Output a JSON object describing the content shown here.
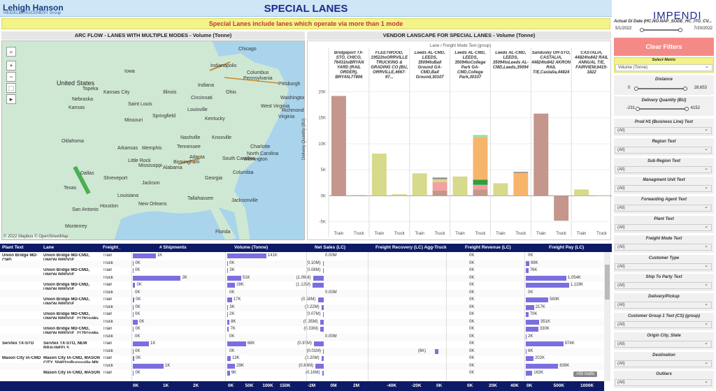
{
  "header": {
    "logo_line1": "Lehigh Hanson",
    "logo_line2": "HEIDELBERGCEMENT Group",
    "title": "SPECIAL LANES",
    "banner": "Special Lanes include lanes which operate via more than 1 mode"
  },
  "map": {
    "title": "ARC FLOW - LANES WITH MULTIPLE MODES - Volume (Tonne)",
    "attribution": "© 2022 Mapbox © OpenStreetMap",
    "labels": [
      "Chicago",
      "Indianapolis",
      "Columbus",
      "Pittsburgh",
      "Pennsylvania",
      "Ohio",
      "Indiana",
      "Illinois",
      "Iowa",
      "Nebraska",
      "Kansas",
      "Missouri",
      "Kentucky",
      "Virginia",
      "West Virginia",
      "Washington",
      "Richmond",
      "Nashville",
      "Charlotte",
      "Tennessee",
      "North Carolina",
      "Atlanta",
      "South Carolina",
      "Wilmington",
      "Georgia",
      "Alabama",
      "Birmingham",
      "Mississippi",
      "Memphis",
      "Arkansas",
      "Oklahoma",
      "Texas",
      "Dallas",
      "Shreveport",
      "Louisiana",
      "New Orleans",
      "Houston",
      "San Antonio",
      "Monterrey",
      "Jacksonville",
      "Tallahassee",
      "Florida",
      "Columbia",
      "Little Rock",
      "Saint Louis",
      "Kansas City",
      "Topeka",
      "Springfield",
      "Cincinnati",
      "Louisville",
      "Knoxville",
      "Jackson"
    ],
    "country": "United States",
    "country2": "States"
  },
  "vendor": {
    "title": "VENDOR LANSCAPE FOR SPECIAL LANES - Volume (Tonne)",
    "legend_label": "Lane",
    "legend2": "Freight Mode Text (group)",
    "columns": [
      "Bridgeport TX-STO, CHICO, 76431toBRYAN YARD (RAIL ORDER), BRYAN,77806",
      "FLEETWOOD, 19522toORRVILLE TRUCKING & GRADING CO (BU, ORRVILLE,4667-97...",
      "Leeds AL-CMD, LEEDS, 35094toBall Ground GA-CMD,Ball Ground,30107",
      "Leeds AL-CMD, LEEDS, 35094toCollege Park GA-CMD,College Park,30337",
      "Leeds AL-CMD, LEEDS, 35094toLeeds AL-CMD,Leeds,35094",
      "Sandusky OH-STO, CASTALIA, 44824to842 AKRON RAIL T/E,Castalia,44824",
      "CASTALIA, 44824to842 RAIL ANNUAL T/E, FAIRVIEW,6415-1822"
    ],
    "ylabel": "Delivery Quantity (BU)",
    "yticks": [
      "20K",
      "15K",
      "10K",
      "5K",
      "0K",
      "-5K"
    ],
    "xlabels": [
      "Train",
      "Truck"
    ]
  },
  "chart_data": {
    "type": "bar",
    "title": "VENDOR LANSCAPE FOR SPECIAL LANES - Volume (Tonne)",
    "ylabel": "Delivery Quantity (BU)",
    "ylim": [
      -6000,
      21000
    ],
    "groups": [
      {
        "lane": "Bridgeport TX-STO",
        "train": [
          {
            "v": 19200,
            "c": "#c4968c"
          }
        ],
        "truck": [
          {
            "v": 100,
            "c": "#c4968c"
          }
        ]
      },
      {
        "lane": "FLEETWOOD",
        "train": [
          {
            "v": 8100,
            "c": "#d7d98b"
          }
        ],
        "truck": [
          {
            "v": 300,
            "c": "#d7d98b"
          }
        ]
      },
      {
        "lane": "Leeds-Ball Ground",
        "train": [
          {
            "v": 4300,
            "c": "#d7d98b"
          }
        ],
        "truck": [
          {
            "v": 1000,
            "c": "#c4968c"
          },
          {
            "v": 1600,
            "c": "#f4a0a0"
          },
          {
            "v": 600,
            "c": "#d7d98b"
          },
          {
            "v": 300,
            "c": "#8c8c8c"
          }
        ]
      },
      {
        "lane": "Leeds-College Park",
        "train": [
          {
            "v": 3700,
            "c": "#d7d98b"
          }
        ],
        "truck": [
          {
            "v": 1200,
            "c": "#c4968c"
          },
          {
            "v": 900,
            "c": "#f4a0a0"
          },
          {
            "v": 1000,
            "c": "#2e9e3e"
          },
          {
            "v": 8200,
            "c": "#f7b56b"
          },
          {
            "v": 400,
            "c": "#9be3a0"
          }
        ]
      },
      {
        "lane": "Leeds-Leeds",
        "train": [
          {
            "v": 2400,
            "c": "#d7d98b"
          }
        ],
        "truck": [
          {
            "v": 4400,
            "c": "#f7b56b"
          },
          {
            "v": 200,
            "c": "#8c8c8c"
          }
        ]
      },
      {
        "lane": "Sandusky",
        "train": [
          {
            "v": 15800,
            "c": "#c4968c"
          }
        ],
        "truck": [
          {
            "v": -4800,
            "c": "#c4968c"
          }
        ]
      },
      {
        "lane": "CASTALIA",
        "train": [
          {
            "v": 1200,
            "c": "#d7d98b"
          }
        ],
        "truck": [
          {
            "v": 100,
            "c": "#d7d98b"
          }
        ]
      }
    ]
  },
  "table": {
    "headers": [
      "Plant Text",
      "Lane",
      "Freight_",
      "# Shipments",
      "Volume (Tonne)",
      "Net Sales (LC)",
      "Freight Recovery (LC) Agg-Truck",
      "Freight Revenue (LC)",
      "Freight Pay (LC)"
    ],
    "footer": {
      "ship": [
        "0K",
        "1K",
        "2K"
      ],
      "vol": [
        "0K",
        "50K",
        "100K",
        "150K"
      ],
      "net": [
        "-2M",
        "0M",
        "2M"
      ],
      "rec": [
        "-40K",
        "-20K",
        "0K"
      ],
      "rev": [
        "0K",
        "20K",
        "40K"
      ],
      "pay": [
        "0K",
        "500K",
        "1000K"
      ]
    },
    "more": ">50 mults",
    "rows": [
      {
        "plant": "Union Bridge MD-CMD",
        "lane": "Union Bridge MD-CMD, UNION BRIDGE, 21791toBal...",
        "mode": "Train",
        "ship": "1K",
        "vol": "141K",
        "net": "0.00M",
        "rec": "",
        "rev": "0K",
        "pay": "0K",
        "sh": 0.47,
        "vo": 0.9,
        "ne": 0,
        "re": 0,
        "rv": 0,
        "py": 0
      },
      {
        "plant": "",
        "lane": "",
        "mode": "Truck",
        "ship": "0K",
        "vol": "0K",
        "net": "(0.10M)",
        "rec": "",
        "rev": "0K",
        "pay": "99K",
        "sh": 0.02,
        "vo": 0.01,
        "ne": -0.02,
        "re": 0,
        "rv": 0,
        "py": 0.08
      },
      {
        "plant": "",
        "lane": "Union Bridge MD-CMD, UNION BRIDGE, 21791toBalti...",
        "mode": "Train",
        "ship": "0K",
        "vol": "3K",
        "net": "(0.08M)",
        "rec": "",
        "rev": "0K",
        "pay": "76K",
        "sh": 0.01,
        "vo": 0.02,
        "ne": -0.02,
        "re": 0,
        "rv": 0,
        "py": 0.06
      },
      {
        "plant": "",
        "lane": "",
        "mode": "Truck",
        "ship": "2K",
        "vol": "51K",
        "net": "(1.09M)",
        "rec": "",
        "rev": "0K",
        "pay": "1,054K",
        "sh": 0.98,
        "vo": 0.32,
        "ne": -0.3,
        "re": 0,
        "rv": 0,
        "py": 0.94
      },
      {
        "plant": "",
        "lane": "Union Bridge MD-CMD, UNION BRIDGE, 21791toBalti...",
        "mode": "Train",
        "ship": "0K",
        "vol": "28K",
        "net": "(1.12M)",
        "rec": "",
        "rev": "0K",
        "pay": "1,119K",
        "sh": 0.05,
        "vo": 0.18,
        "ne": -0.31,
        "re": 0,
        "rv": 0,
        "py": 1.0
      },
      {
        "plant": "",
        "lane": "",
        "mode": "Truck",
        "ship": "0K",
        "vol": "0K",
        "net": "0.00M",
        "rec": "",
        "rev": "0K",
        "pay": "0K",
        "sh": 0,
        "vo": 0,
        "ne": 0,
        "re": 0,
        "rv": 0,
        "py": 0
      },
      {
        "plant": "",
        "lane": "Union Bridge MD-CMD, UNION BRIDGE, 21791toChe...",
        "mode": "Train",
        "ship": "0K",
        "vol": "17K",
        "net": "(0.58M)",
        "rec": "",
        "rev": "0K",
        "pay": "580K",
        "sh": 0.03,
        "vo": 0.11,
        "ne": -0.16,
        "re": 0,
        "rv": 0,
        "py": 0.52
      },
      {
        "plant": "",
        "lane": "",
        "mode": "Truck",
        "ship": "0K",
        "vol": "3K",
        "net": "(0.22M)",
        "rec": "",
        "rev": "0K",
        "pay": "217K",
        "sh": 0.02,
        "vo": 0.02,
        "ne": -0.06,
        "re": 0,
        "rv": 0,
        "py": 0.19
      },
      {
        "plant": "",
        "lane": "Union Bridge MD-CMD, UNION BRIDGE, 21791toWa...",
        "mode": "Train",
        "ship": "0K",
        "vol": "2K",
        "net": "(0.07M)",
        "rec": "",
        "rev": "0K",
        "pay": "70K",
        "sh": 0.01,
        "vo": 0.01,
        "ne": -0.02,
        "re": 0,
        "rv": 0,
        "py": 0.06
      },
      {
        "plant": "",
        "lane": "",
        "mode": "Truck",
        "ship": "0K",
        "vol": "8K",
        "net": "(0.35M)",
        "rec": "",
        "rev": "0K",
        "pay": "351K",
        "sh": 0.1,
        "vo": 0.05,
        "ne": -0.1,
        "re": 0,
        "rv": 0,
        "py": 0.31
      },
      {
        "plant": "",
        "lane": "Union Bridge MD-CMD, UNION BRIDGE, 21791toWe...",
        "mode": "Train",
        "ship": "0K",
        "vol": "7K",
        "net": "(0.33M)",
        "rec": "",
        "rev": "0K",
        "pay": "330K",
        "sh": 0.02,
        "vo": 0.04,
        "ne": -0.09,
        "re": 0,
        "rv": 0,
        "py": 0.29
      },
      {
        "plant": "",
        "lane": "",
        "mode": "Truck",
        "ship": "0K",
        "vol": "0K",
        "net": "0.00M",
        "rec": "",
        "rev": "0K",
        "pay": "2K",
        "sh": 0,
        "vo": 0,
        "ne": 0,
        "re": 0,
        "rv": 0,
        "py": 0.01
      },
      {
        "plant": "Servtex TX-STO",
        "lane": "Servtex TX-STO, NEW BRAUNFELS, 78266toHockle...",
        "mode": "Train",
        "ship": "1K",
        "vol": "68K",
        "net": "(0.97M)",
        "rec": "",
        "rev": "0K",
        "pay": "974K",
        "sh": 0.33,
        "vo": 0.43,
        "ne": -0.27,
        "re": 0,
        "rv": 0,
        "py": 0.87
      },
      {
        "plant": "",
        "lane": "",
        "mode": "Truck",
        "ship": "0K",
        "vol": "0K",
        "net": "(0.01M)",
        "rec": "(6K)",
        "rev": "0K",
        "pay": "6K",
        "sh": 0.01,
        "vo": 0,
        "ne": -0.01,
        "re": -0.08,
        "rv": 0,
        "py": 0.01
      },
      {
        "plant": "Mason City IA-CMD",
        "lane": "Mason City IA-CMD, MASON CITY, 50401toBurnsville MN...",
        "mode": "Train",
        "ship": "0K",
        "vol": "13K",
        "net": "(0.20M)",
        "rec": "",
        "rev": "0K",
        "pay": "202K",
        "sh": 0.03,
        "vo": 0.08,
        "ne": -0.06,
        "re": 0,
        "rv": 0,
        "py": 0.18
      },
      {
        "plant": "",
        "lane": "",
        "mode": "Truck",
        "ship": "1K",
        "vol": "29K",
        "net": "(0.84M)",
        "rec": "",
        "rev": "0K",
        "pay": "839K",
        "sh": 0.63,
        "vo": 0.18,
        "ne": -0.23,
        "re": 0,
        "rv": 0,
        "py": 0.75
      },
      {
        "plant": "",
        "lane": "Mason City IA-CMD, MASON",
        "mode": "Train",
        "ship": "0K",
        "vol": "9K",
        "net": "(0.16M)",
        "rec": "",
        "rev": "0K",
        "pay": "163K",
        "sh": 0.02,
        "vo": 0.06,
        "ne": -0.04,
        "re": 0,
        "rv": 0,
        "py": 0.15
      }
    ]
  },
  "sidebar": {
    "brand": "IMPENDI",
    "date_label": "Actual GI Date (HC.NO.NAP_SODE_HC_ITO_CV...",
    "date_from": "5/1/2022",
    "date_to": "7/20/2022",
    "clear": "Clear Filters",
    "metric_label": "Select Metric",
    "metric_value": "Volume (Tonne)",
    "distance_label": "Distance",
    "distance_min": "0",
    "distance_max": "28,653",
    "dq_label": "Delivery Quantity (BU)",
    "dq_min": "-231",
    "dq_max": "4152",
    "filters": [
      {
        "label": "Prod H1 (Business Line) Text",
        "value": "(All)"
      },
      {
        "label": "Region Text",
        "value": "(All)"
      },
      {
        "label": "Sub Region Text",
        "value": "(All)"
      },
      {
        "label": "Managment Unit Text",
        "value": "(All)"
      },
      {
        "label": "Forwarding Agent Text",
        "value": "(All)"
      },
      {
        "label": "Plant Text",
        "value": "(All)"
      },
      {
        "label": "Freight Mode Text",
        "value": "(All)"
      },
      {
        "label": "Customer Type",
        "value": "(All)"
      },
      {
        "label": "Ship To Party Text",
        "value": "(All)"
      },
      {
        "label": "Delivery/Pickup",
        "value": "(All)"
      },
      {
        "label": "Customer Group 1 Text (CS) (group)",
        "value": "(All)"
      },
      {
        "label": "Origin City, State",
        "value": "(All)"
      },
      {
        "label": "Destination",
        "value": "(All)"
      },
      {
        "label": "Outliers",
        "value": "(All)"
      }
    ]
  },
  "colors": {
    "header_bg": "#cfe6f6",
    "table_header": "#0d1a66",
    "bar": "#7b6fe0",
    "clear_btn": "#f48a85"
  }
}
